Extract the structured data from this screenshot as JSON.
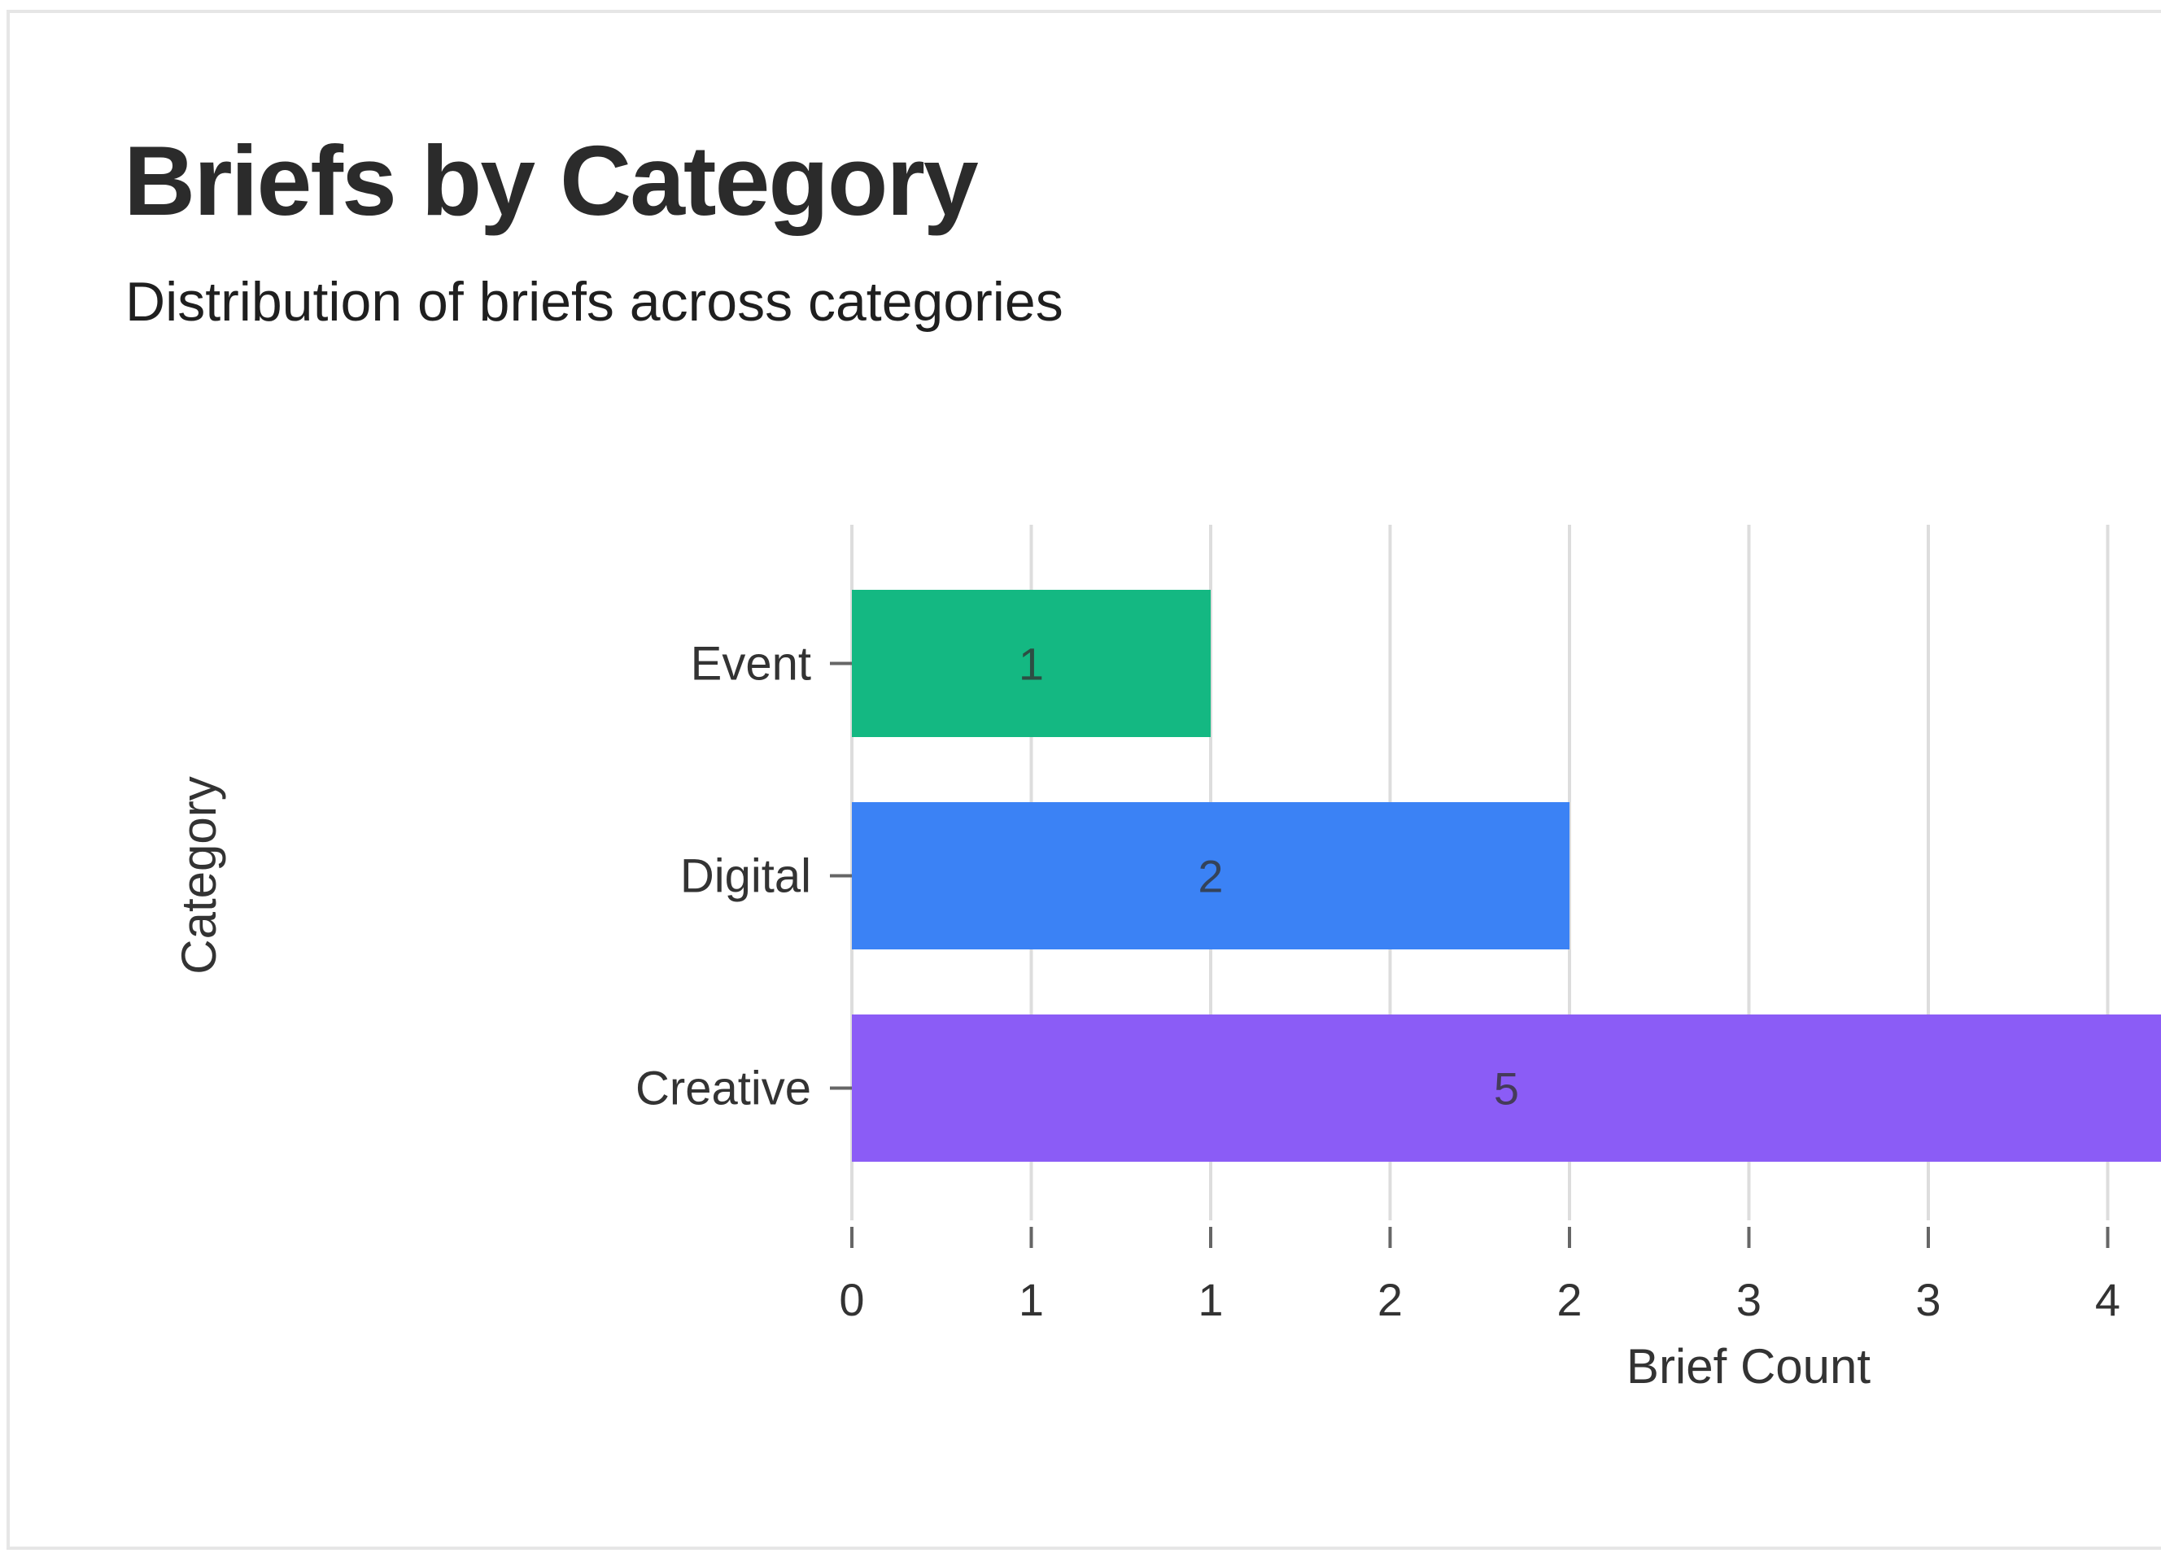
{
  "title": "Briefs by Category",
  "subtitle": "Distribution of briefs across categories",
  "chart_data": {
    "type": "bar",
    "orientation": "horizontal",
    "categories": [
      "Event",
      "Digital",
      "Creative"
    ],
    "values": [
      1,
      2,
      5
    ],
    "data_labels": [
      "1",
      "2",
      "5"
    ],
    "colors": [
      "#14b882",
      "#3b82f5",
      "#8b5cf6"
    ],
    "xlabel": "Brief Count",
    "ylabel": "Category",
    "xlim": [
      0,
      3.5
    ],
    "x_ticks": [
      0,
      0.5,
      1,
      1.5,
      2,
      2.5,
      3,
      3.5
    ],
    "x_tick_labels": [
      "0",
      "1",
      "1",
      "2",
      "2",
      "3",
      "3",
      "4"
    ],
    "grid": true,
    "label_color": "#333333",
    "grid_color": "#dddddd"
  }
}
